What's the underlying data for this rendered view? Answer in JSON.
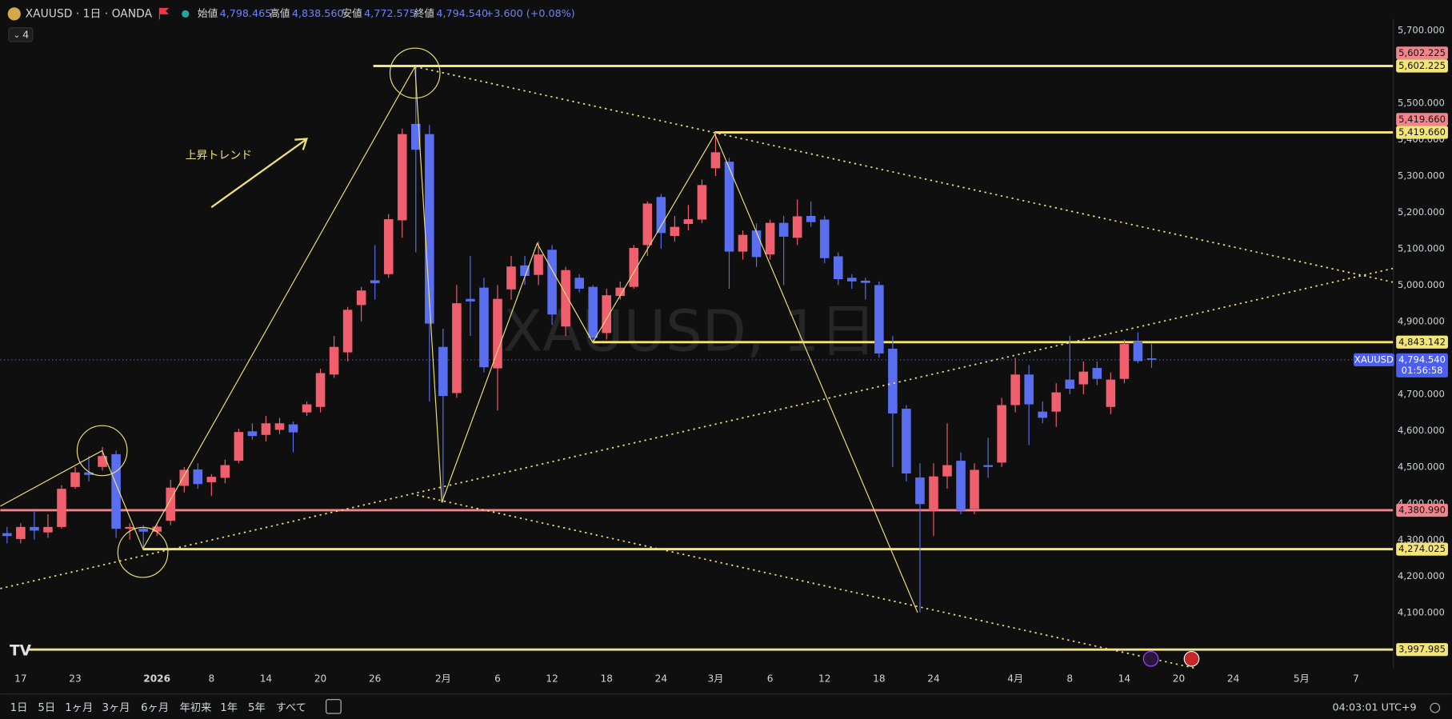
{
  "header": {
    "title": "XAUUSD · 1日 · OANDA",
    "indicators": "4",
    "ohlc": [
      {
        "label": "始値",
        "value": "4,798.465"
      },
      {
        "label": "高値",
        "value": "4,838.560"
      },
      {
        "label": "安値",
        "value": "4,772.575"
      },
      {
        "label": "終値",
        "value": "4,794.540"
      }
    ],
    "change": "+3.600 (+0.08%)"
  },
  "chart_data": {
    "type": "candlestick",
    "watermark": "XAUUSD, 1日",
    "annotation": "上昇トレンド",
    "up_color": "#ef5f6e",
    "down_color": "#5a6ff0",
    "grid": false,
    "categories": [
      null,
      "17",
      null,
      null,
      null,
      "23",
      null,
      null,
      null,
      null,
      null,
      "2026",
      null,
      null,
      null,
      "8",
      null,
      null,
      null,
      "14",
      null,
      null,
      null,
      "20",
      null,
      null,
      null,
      "26",
      null,
      null,
      null,
      null,
      "2月",
      null,
      null,
      null,
      "6",
      null,
      null,
      null,
      "12",
      null,
      null,
      null,
      "18",
      null,
      null,
      null,
      "24",
      null,
      null,
      null,
      "3月",
      null,
      null,
      null,
      "6",
      null,
      null,
      null,
      "12",
      null,
      null,
      null,
      "18",
      null,
      null,
      null,
      "24",
      null,
      null,
      null,
      null,
      null,
      "4月",
      null,
      null,
      null,
      "8",
      null,
      null,
      null,
      "14",
      null,
      null,
      null,
      "20",
      null,
      null,
      null,
      "24",
      null,
      null,
      null,
      null,
      "5月",
      null,
      null,
      null,
      "7",
      null,
      null
    ],
    "open": [
      4318,
      4302,
      4335,
      4320,
      4335,
      4445,
      4485,
      4500,
      4535,
      4330,
      4330,
      4322,
      4352,
      4448,
      4493,
      4458,
      4470,
      4517,
      4598,
      4588,
      4602,
      4617,
      4650,
      4665,
      4754,
      4815,
      4945,
      5013,
      5030,
      5178,
      5443,
      5415,
      4830,
      4703,
      4962,
      4993,
      4771,
      4988,
      5054,
      5028,
      5097,
      4886,
      5020,
      4995,
      4868,
      4970,
      4995,
      5110,
      5242,
      5135,
      5168,
      5180,
      5321,
      5339,
      5092,
      5150,
      5084,
      5171,
      5130,
      5190,
      5180,
      5079,
      5020,
      5012,
      5000,
      4825,
      4660,
      4471,
      4380,
      4474,
      4517,
      4385,
      4505,
      4512,
      4670,
      4754,
      4652,
      4652,
      4740,
      4727,
      4772,
      4665,
      4742,
      4845,
      4798.465,
      null,
      null,
      null,
      null,
      null,
      null,
      null,
      null,
      null,
      null,
      null,
      null,
      null,
      null,
      null,
      null,
      null
    ],
    "high": [
      4335,
      4345,
      4380,
      4370,
      4450,
      4500,
      4530,
      4555,
      4545,
      4345,
      4340,
      4345,
      4465,
      4500,
      4510,
      4480,
      4520,
      4605,
      4620,
      4640,
      4635,
      4625,
      4680,
      4770,
      4860,
      4940,
      4995,
      5110,
      5195,
      5430,
      5602.225,
      5440,
      4880,
      5000,
      5080,
      5020,
      5000,
      5080,
      5080,
      5120,
      5110,
      5050,
      5030,
      5000,
      4990,
      5010,
      5110,
      5230,
      5250,
      5190,
      5220,
      5290,
      5419.66,
      5350,
      5150,
      5170,
      5180,
      5190,
      5235,
      5230,
      5190,
      5090,
      5030,
      5020,
      5010,
      4860,
      4670,
      4510,
      4510,
      4620,
      4540,
      4510,
      4580,
      4690,
      4800,
      4780,
      4680,
      4730,
      4860,
      4790,
      4790,
      4760,
      4850,
      4870,
      4838.56,
      null,
      null,
      null,
      null,
      null,
      null,
      null,
      null,
      null,
      null,
      null,
      null,
      null,
      null,
      null,
      null,
      null
    ],
    "low": [
      4290,
      4290,
      4300,
      4305,
      4330,
      4440,
      4460,
      4490,
      4305,
      4300,
      4274.025,
      4310,
      4340,
      4430,
      4440,
      4420,
      4455,
      4510,
      4575,
      4570,
      4590,
      4540,
      4640,
      4650,
      4745,
      4790,
      4900,
      4960,
      5020,
      5130,
      5090,
      4680,
      4402,
      4690,
      4860,
      4760,
      4655,
      4960,
      5000,
      5000,
      4890,
      4860,
      4980,
      4840,
      4850,
      4960,
      4990,
      5080,
      5100,
      5120,
      5150,
      5170,
      5300,
      4990,
      5070,
      5050,
      5070,
      5000,
      5110,
      5160,
      5060,
      5000,
      4990,
      4960,
      4800,
      4500,
      4460,
      4100,
      4310,
      4440,
      4370,
      4370,
      4470,
      4500,
      4650,
      4560,
      4620,
      4610,
      4700,
      4700,
      4725,
      4645,
      4730,
      4785,
      4772.575,
      null,
      null,
      null,
      null,
      null,
      null,
      null,
      null,
      null,
      null,
      null,
      null,
      null,
      null,
      null,
      null,
      null
    ],
    "close": [
      4310,
      4335,
      4325,
      4335,
      4440,
      4485,
      4478,
      4530,
      4330,
      4335,
      4322,
      4336,
      4443,
      4492,
      4453,
      4473,
      4505,
      4596,
      4585,
      4620,
      4620,
      4595,
      4672,
      4758,
      4830,
      4932,
      4985,
      5005,
      5181,
      5415,
      5372,
      4894,
      4695,
      4950,
      4955,
      4774,
      4962,
      5051,
      5025,
      5084,
      4919,
      5041,
      4990,
      4855,
      4972,
      4993,
      5102,
      5224,
      5143,
      5160,
      5181,
      5275,
      5365,
      5092,
      5138,
      5077,
      5171,
      5133,
      5189,
      5173,
      5074,
      5016,
      5010,
      5006,
      4812,
      4647,
      4482,
      4398,
      4474,
      4505,
      4380,
      4492,
      4500,
      4670,
      4754,
      4672,
      4635,
      4705,
      4715,
      4762,
      4742,
      4740,
      4838,
      4790.94,
      4794.54,
      null,
      null,
      null,
      null,
      null,
      null,
      null,
      null,
      null,
      null,
      null,
      null,
      null,
      null,
      null,
      null,
      null
    ],
    "ylim": [
      3947,
      5720
    ],
    "yticks": [
      {
        "value": 4100,
        "label": "4,100.000"
      },
      {
        "value": 4200,
        "label": "4,200.000"
      },
      {
        "value": 4300,
        "label": "4,300.000"
      },
      {
        "value": 4400,
        "label": "4,400.000"
      },
      {
        "value": 4500,
        "label": "4,500.000"
      },
      {
        "value": 4600,
        "label": "4,600.000"
      },
      {
        "value": 4700,
        "label": "4,700.000"
      },
      {
        "value": 4800,
        "label": "4,800.000"
      },
      {
        "value": 4900,
        "label": "4,900.000"
      },
      {
        "value": 5000,
        "label": "5,000.000"
      },
      {
        "value": 5100,
        "label": "5,100.000"
      },
      {
        "value": 5200,
        "label": "5,200.000"
      },
      {
        "value": 5300,
        "label": "5,300.000"
      },
      {
        "value": 5400,
        "label": "5,400.000"
      },
      {
        "value": 5500,
        "label": "5,500.000"
      },
      {
        "value": 5600,
        "label": "5,600.000"
      },
      {
        "value": 5700,
        "label": "5,700.000"
      }
    ],
    "levels": [
      {
        "value": 5602.225,
        "label": "5,602.225",
        "color": "#f0868c"
      },
      {
        "value": 5602.225,
        "label": "5,602.225",
        "color": "#f3e57a"
      },
      {
        "value": 5419.66,
        "label": "5,419.660",
        "color": "#f0868c"
      },
      {
        "value": 5419.66,
        "label": "5,419.660",
        "color": "#f3e57a"
      },
      {
        "value": 4843.142,
        "label": "4,843.142",
        "color": "#f3e57a"
      },
      {
        "value": 4380.99,
        "label": "4,380.990",
        "color": "#f0868c"
      },
      {
        "value": 4274.025,
        "label": "4,274.025",
        "color": "#f3e57a"
      },
      {
        "value": 3997.985,
        "label": "3,997.985",
        "color": "#f3e57a"
      }
    ],
    "last": {
      "symbol": "XAUUSD",
      "value": 4794.54,
      "label": "4,794.540",
      "countdown": "01:56:58",
      "color": "#4c5ef0"
    }
  },
  "toolbar": {
    "ranges": [
      "1日",
      "5日",
      "1ヶ月",
      "3ヶ月",
      "6ヶ月",
      "年初来",
      "1年",
      "5年",
      "すべて"
    ],
    "clock": "04:03:01 UTC+9"
  }
}
